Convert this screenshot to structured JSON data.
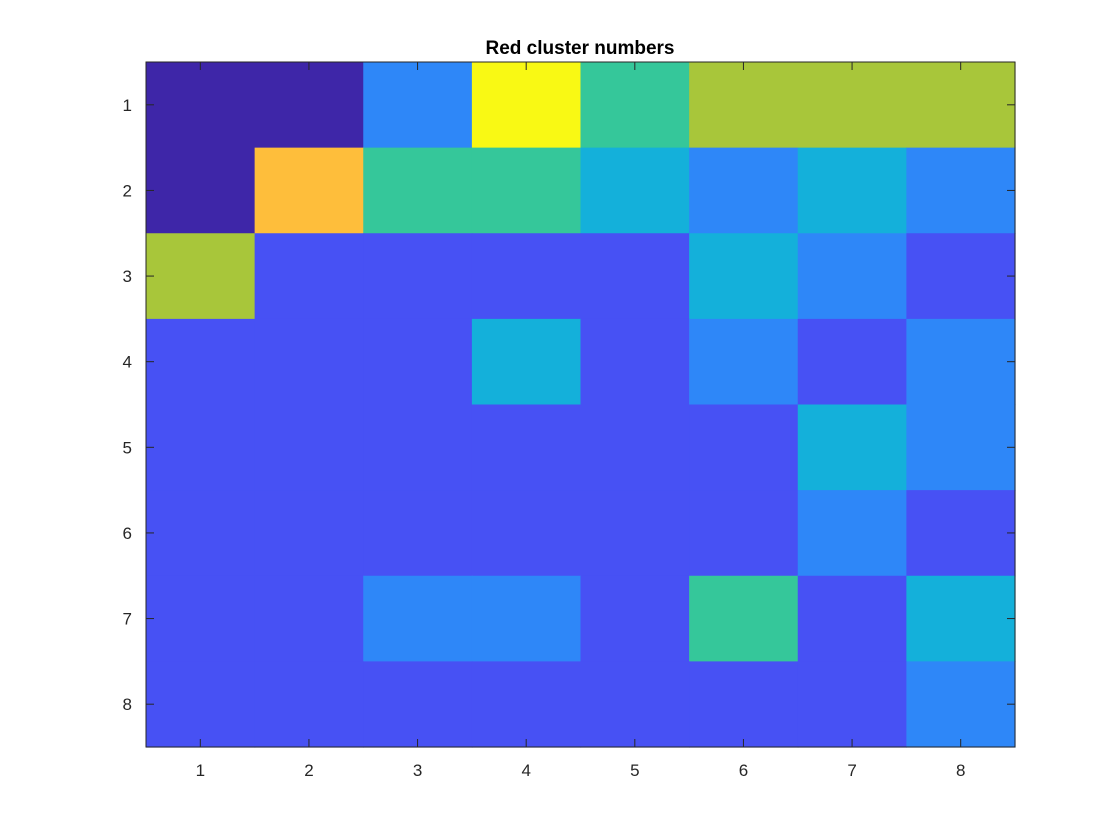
{
  "chart_data": {
    "type": "heatmap",
    "title": "Red cluster numbers",
    "xlabel": "",
    "ylabel": "",
    "x_ticks": [
      "1",
      "2",
      "3",
      "4",
      "5",
      "6",
      "7",
      "8"
    ],
    "y_ticks": [
      "1",
      "2",
      "3",
      "4",
      "5",
      "6",
      "7",
      "8"
    ],
    "xlim": [
      0.5,
      8.5
    ],
    "ylim": [
      0.5,
      8.5
    ],
    "y_direction": "reverse",
    "colormap": "parula",
    "color_range": [
      0,
      8
    ],
    "values": [
      [
        0,
        0,
        3,
        8,
        5,
        7,
        7,
        7
      ],
      [
        0,
        7.5,
        5,
        5,
        4,
        3,
        4,
        3
      ],
      [
        7,
        1,
        1,
        1,
        1,
        4,
        3,
        1
      ],
      [
        1,
        1,
        1,
        4,
        1,
        3,
        1,
        3
      ],
      [
        1,
        1,
        1,
        1,
        1,
        1,
        4,
        3
      ],
      [
        1,
        1,
        1,
        1,
        1,
        1,
        3,
        1
      ],
      [
        1,
        1,
        3,
        3,
        1,
        5,
        1,
        4
      ],
      [
        1,
        1,
        1,
        1,
        1,
        1,
        1,
        3
      ]
    ],
    "grid": false,
    "colors": {
      "0": "#3e26a8",
      "1": "#4751f4",
      "3": "#2e87f8",
      "4": "#14b0da",
      "5": "#35c79a",
      "7": "#a8c63a",
      "7.5": "#febe3b",
      "8": "#f9f914"
    },
    "axis_color": "#262626"
  }
}
